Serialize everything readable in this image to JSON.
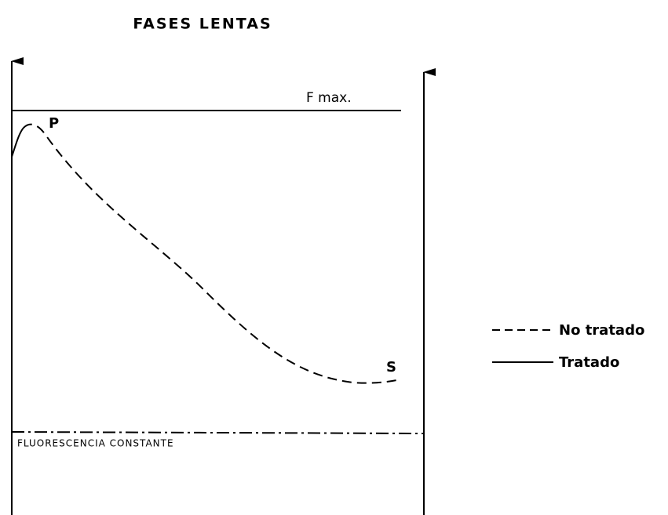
{
  "title": "FASES LENTAS",
  "labels": {
    "fmax": "F max.",
    "p": "P",
    "s": "S",
    "constant": "FLUORESCENCIA CONSTANTE"
  },
  "legend": [
    {
      "name": "No tratado"
    },
    {
      "name": "Tratado"
    }
  ]
}
